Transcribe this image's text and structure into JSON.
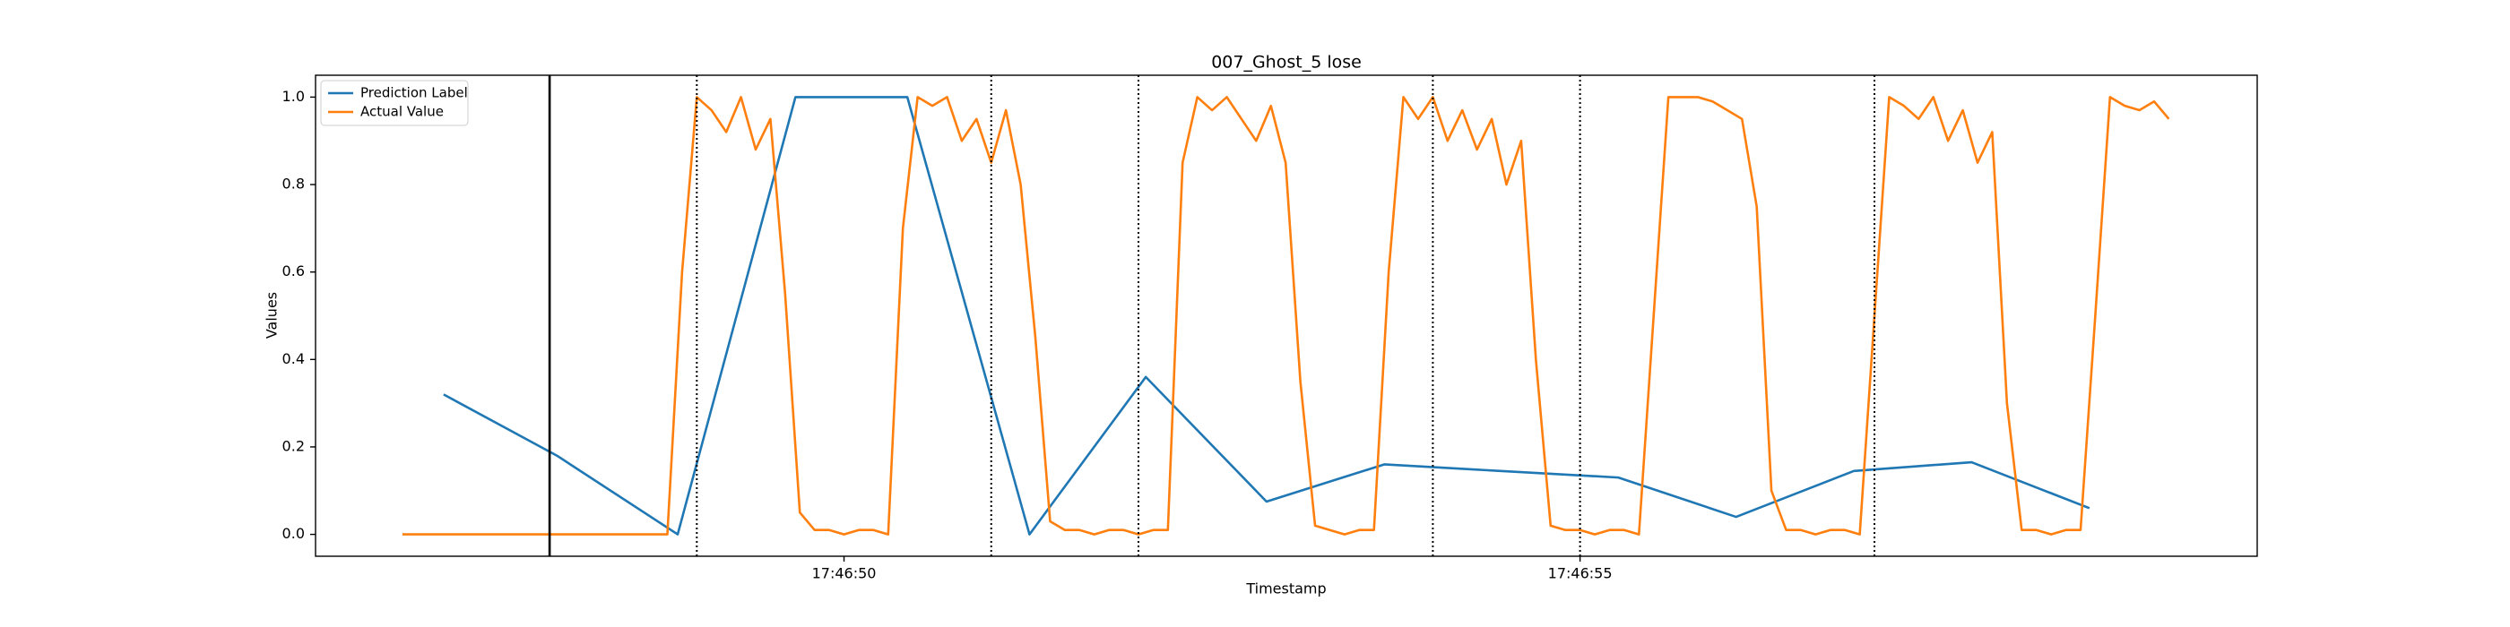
{
  "chart_data": {
    "type": "line",
    "title": "007_Ghost_5 lose",
    "xlabel": "Timestamp",
    "ylabel": "Values",
    "xlim": [
      64006.41,
      64019.6
    ],
    "ylim": [
      -0.05,
      1.05
    ],
    "xticks": [
      {
        "value": 64010,
        "label": "17:46:50"
      },
      {
        "value": 64015,
        "label": "17:46:55"
      }
    ],
    "yticks": [
      {
        "value": 0,
        "label": "0.0"
      },
      0.2,
      0.4,
      0.6,
      0.8,
      {
        "value": 1,
        "label": "1.0"
      }
    ],
    "grid": false,
    "legend": "upper left",
    "vlines": [
      {
        "x": 64008,
        "style": "solid"
      },
      {
        "x": 64009,
        "style": "dotted"
      },
      {
        "x": 64011,
        "style": "dotted"
      },
      {
        "x": 64012,
        "style": "dotted"
      },
      {
        "x": 64014,
        "style": "dotted"
      },
      {
        "x": 64015,
        "style": "dotted"
      },
      {
        "x": 64017,
        "style": "dotted"
      }
    ],
    "series": [
      {
        "name": "Prediction Label",
        "color": "#1f77b4",
        "x": [
          64007.28,
          64008.05,
          64008.87,
          64009.67,
          64010.43,
          64011.26,
          64012.05,
          64012.87,
          64013.67,
          64014.46,
          64015.26,
          64016.06,
          64016.86,
          64017.66,
          64018.46
        ],
        "values": [
          0.32,
          0.18,
          0.0,
          1.0,
          1.0,
          0.0,
          0.36,
          0.075,
          0.16,
          0.145,
          0.13,
          0.04,
          0.145,
          0.165,
          0.06
        ]
      },
      {
        "name": "Actual Value",
        "color": "#ff7f0e",
        "x": [
          64007,
          64007.1,
          64007.2,
          64007.3,
          64007.4,
          64007.5,
          64007.6,
          64007.7,
          64007.8,
          64007.9,
          64008,
          64008.1,
          64008.2,
          64008.3,
          64008.4,
          64008.5,
          64008.6,
          64008.7,
          64008.8,
          64008.9,
          64009,
          64009.1,
          64009.2,
          64009.3,
          64009.4,
          64009.5,
          64009.6,
          64009.7,
          64009.8,
          64009.9,
          64010,
          64010.1,
          64010.2,
          64010.3,
          64010.4,
          64010.5,
          64010.6,
          64010.7,
          64010.8,
          64010.9,
          64011,
          64011.1,
          64011.2,
          64011.3,
          64011.4,
          64011.5,
          64011.6,
          64011.7,
          64011.8,
          64011.9,
          64012,
          64012.1,
          64012.2,
          64012.3,
          64012.4,
          64012.5,
          64012.6,
          64012.7,
          64012.8,
          64012.9,
          64013,
          64013.1,
          64013.2,
          64013.3,
          64013.4,
          64013.5,
          64013.6,
          64013.7,
          64013.8,
          64013.9,
          64014,
          64014.1,
          64014.2,
          64014.3,
          64014.4,
          64014.5,
          64014.6,
          64014.7,
          64014.8,
          64014.9,
          64015,
          64015.1,
          64015.2,
          64015.3,
          64015.4,
          64015.5,
          64015.6,
          64015.7,
          64015.8,
          64015.9,
          64016,
          64016.1,
          64016.2,
          64016.3,
          64016.4,
          64016.5,
          64016.6,
          64016.7,
          64016.8,
          64016.9,
          64017,
          64017.1,
          64017.2,
          64017.3,
          64017.4,
          64017.5,
          64017.6,
          64017.7,
          64017.8,
          64017.9,
          64018,
          64018.1,
          64018.2,
          64018.3,
          64018.4,
          64018.5,
          64018.6,
          64018.7,
          64018.8,
          64018.9,
          64019
        ],
        "values": [
          0,
          0,
          0,
          0,
          0,
          0,
          0,
          0,
          0,
          0,
          0,
          0,
          0,
          0,
          0,
          0,
          0,
          0,
          0,
          0.6,
          1.0,
          0.97,
          0.92,
          1.0,
          0.88,
          0.95,
          0.55,
          0.05,
          0.01,
          0.01,
          0.0,
          0.01,
          0.01,
          0.0,
          0.7,
          1.0,
          0.98,
          1.0,
          0.9,
          0.95,
          0.85,
          0.97,
          0.8,
          0.45,
          0.03,
          0.01,
          0.01,
          0.0,
          0.01,
          0.01,
          0.0,
          0.01,
          0.01,
          0.85,
          1.0,
          0.97,
          1.0,
          0.95,
          0.9,
          0.98,
          0.85,
          0.35,
          0.02,
          0.01,
          0.0,
          0.01,
          0.01,
          0.6,
          1.0,
          0.95,
          1.0,
          0.9,
          0.97,
          0.88,
          0.95,
          0.8,
          0.9,
          0.4,
          0.02,
          0.01,
          0.01,
          0.0,
          0.01,
          0.01,
          0.0,
          0.5,
          1.0,
          1.0,
          1.0,
          0.99,
          0.97,
          0.95,
          0.75,
          0.1,
          0.01,
          0.01,
          0.0,
          0.01,
          0.01,
          0.0,
          0.5,
          1.0,
          0.98,
          0.95,
          1.0,
          0.9,
          0.97,
          0.85,
          0.92,
          0.3,
          0.01,
          0.01,
          0.0,
          0.01,
          0.01,
          0.5,
          1.0,
          0.98,
          0.97,
          0.99,
          0.95
        ]
      }
    ]
  }
}
